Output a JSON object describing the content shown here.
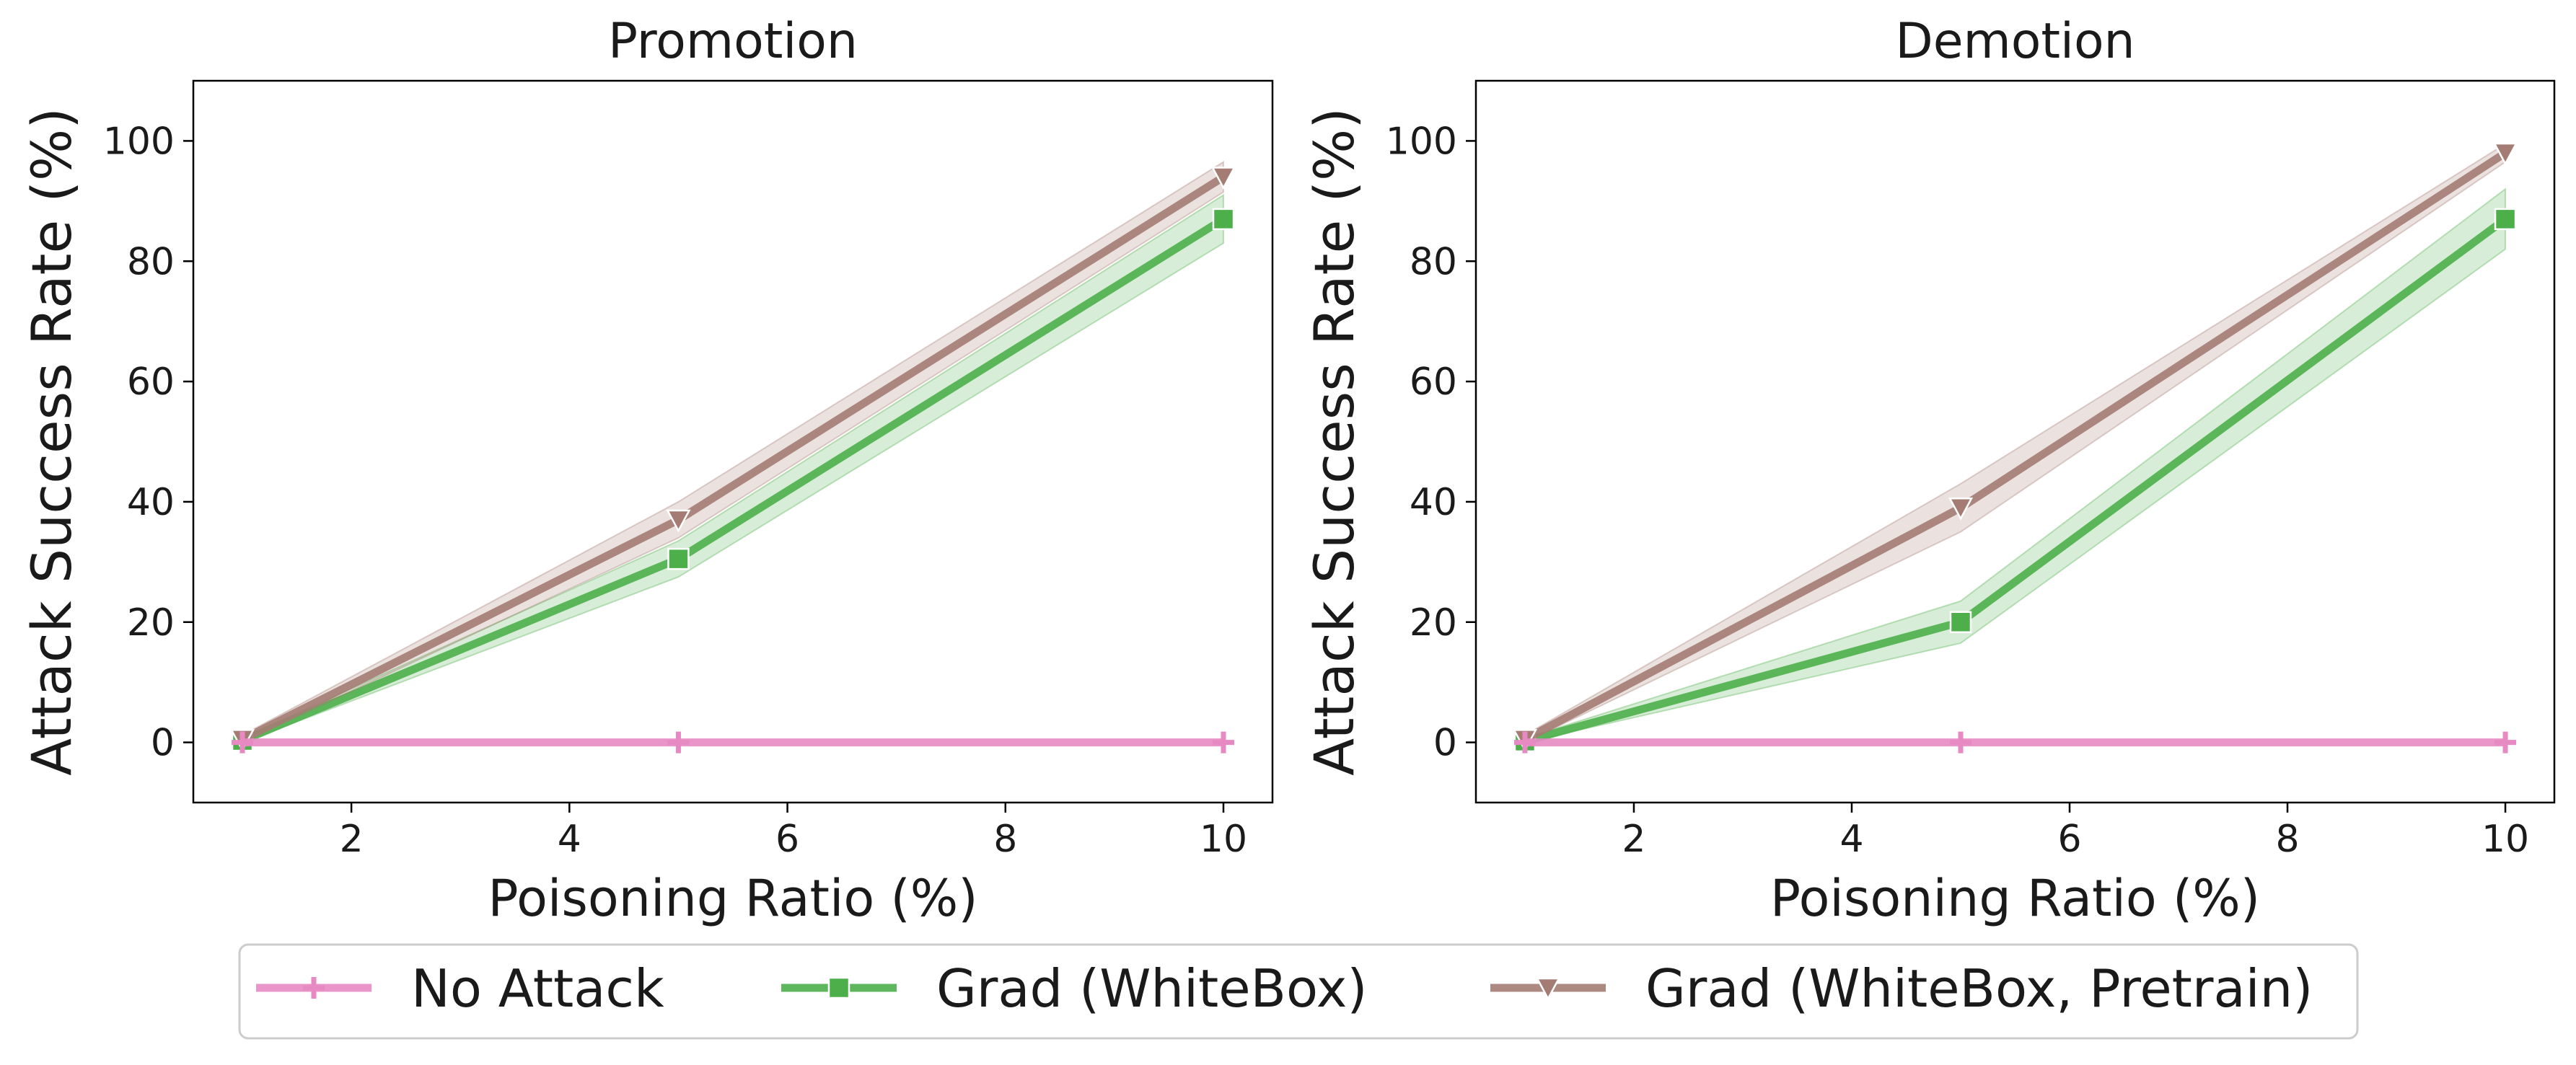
{
  "chart_data": [
    {
      "type": "line",
      "title": "Promotion",
      "xlabel": "Poisoning Ratio (%)",
      "ylabel": "Attack Success Rate (%)",
      "xlim": [
        0.55,
        10.45
      ],
      "ylim": [
        -10,
        110
      ],
      "xticks": [
        2,
        4,
        6,
        8,
        10
      ],
      "yticks": [
        0,
        20,
        40,
        60,
        80,
        100
      ],
      "x": [
        1,
        5,
        10
      ],
      "series": [
        {
          "name": "No Attack",
          "values": [
            0,
            0,
            0
          ],
          "lower": [
            0,
            0,
            0
          ],
          "upper": [
            0,
            0,
            0
          ],
          "color": "#e78ac3",
          "marker": "plus"
        },
        {
          "name": "Grad (WhiteBox)",
          "values": [
            0.3,
            30.5,
            87
          ],
          "lower": [
            0,
            27.5,
            83
          ],
          "upper": [
            0.8,
            33.5,
            91
          ],
          "color": "#4daf4a",
          "marker": "square"
        },
        {
          "name": "Grad (WhiteBox, Pretrain)",
          "values": [
            0.5,
            37,
            94
          ],
          "lower": [
            0,
            34,
            91.5
          ],
          "upper": [
            1.2,
            40,
            96.5
          ],
          "color": "#a47c73",
          "marker": "triangle-down"
        }
      ]
    },
    {
      "type": "line",
      "title": "Demotion",
      "xlabel": "Poisoning Ratio (%)",
      "ylabel": "Attack Success Rate (%)",
      "xlim": [
        0.55,
        10.45
      ],
      "ylim": [
        -10,
        110
      ],
      "xticks": [
        2,
        4,
        6,
        8,
        10
      ],
      "yticks": [
        0,
        20,
        40,
        60,
        80,
        100
      ],
      "x": [
        1,
        5,
        10
      ],
      "series": [
        {
          "name": "No Attack",
          "values": [
            0,
            0,
            0
          ],
          "lower": [
            0,
            0,
            0
          ],
          "upper": [
            0,
            0,
            0
          ],
          "color": "#e78ac3",
          "marker": "plus"
        },
        {
          "name": "Grad (WhiteBox)",
          "values": [
            0.2,
            20,
            87
          ],
          "lower": [
            0,
            16.5,
            82
          ],
          "upper": [
            0.7,
            23.5,
            92
          ],
          "color": "#4daf4a",
          "marker": "square"
        },
        {
          "name": "Grad (WhiteBox, Pretrain)",
          "values": [
            0.5,
            39,
            98
          ],
          "lower": [
            0,
            35,
            96.5
          ],
          "upper": [
            1.2,
            43,
            99.5
          ],
          "color": "#a47c73",
          "marker": "triangle-down"
        }
      ]
    }
  ],
  "legend": {
    "placement": "bottom-center",
    "items": [
      {
        "label": "No Attack",
        "color": "#e78ac3",
        "marker": "plus"
      },
      {
        "label": "Grad (WhiteBox)",
        "color": "#4daf4a",
        "marker": "square"
      },
      {
        "label": "Grad (WhiteBox, Pretrain)",
        "color": "#a47c73",
        "marker": "triangle-down"
      }
    ]
  }
}
